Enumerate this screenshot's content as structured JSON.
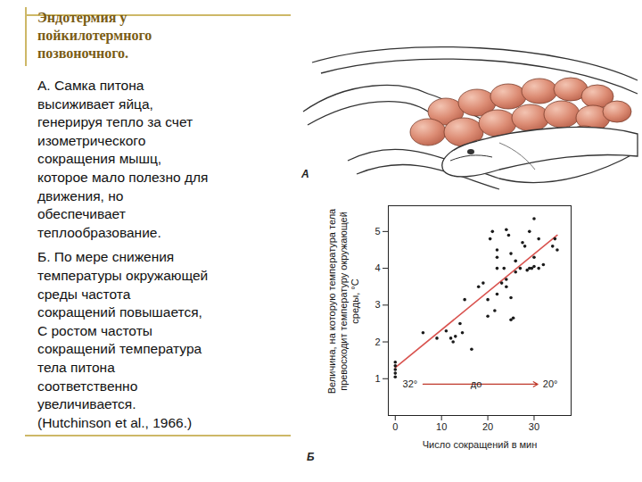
{
  "slide": {
    "title": [
      "Эндотермия у",
      "пойкилотермного",
      "позвоночного."
    ],
    "paragraphs": [
      [
        "А. Самка питона",
        "высиживает яйца,",
        "генерируя тепло за счет",
        "изометрического",
        "сокращения мышц,",
        "которое мало полезно для",
        "движения, но",
        "обеспечивает",
        "теплообразование."
      ],
      [
        "Б. По мере снижения",
        "температуры окружающей",
        "среды частота",
        "сокращений повышается,",
        "С ростом частоты",
        "сокращений температура",
        "тела питона",
        "соответственно",
        "увеличивается.",
        "(Hutchinson et al., 1966.)"
      ]
    ],
    "panel_labels": [
      "А",
      "Б"
    ]
  },
  "chart_data": {
    "type": "scatter",
    "xlabel": "Число сокращений в мин",
    "ylabel": "Величина, на которую температура тела превосходит температуру окружающей среды, °С",
    "xlim": [
      -1.5,
      38
    ],
    "ylim": [
      0,
      5.7
    ],
    "xticks": [
      0,
      10,
      20,
      30
    ],
    "yticks": [
      1,
      2,
      3,
      4,
      5
    ],
    "grid": false,
    "series": [
      {
        "type": "scatter",
        "color": "#1a1a1a",
        "marker": "circle",
        "x": [
          0,
          0,
          0,
          0,
          0,
          6,
          9,
          11,
          12,
          12.5,
          13,
          14,
          14.5,
          15,
          16.5,
          18,
          19,
          20,
          20,
          20.5,
          21,
          21.5,
          22,
          22,
          22,
          22,
          23,
          23.5,
          24,
          24,
          24,
          24.5,
          25,
          25,
          25,
          25.5,
          26,
          26,
          27,
          27.5,
          28,
          28.5,
          29,
          29,
          29.5,
          30,
          30,
          30,
          31,
          31,
          32,
          34,
          34.5,
          35
        ],
        "values": [
          1.45,
          1.35,
          1.25,
          1.15,
          1.05,
          2.25,
          2.1,
          2.3,
          2.1,
          2.0,
          2.15,
          2.5,
          2.25,
          3.15,
          1.8,
          3.5,
          3.6,
          3.15,
          2.7,
          4.8,
          5.0,
          2.85,
          4.3,
          4.5,
          4.0,
          3.3,
          3.6,
          4.0,
          5.05,
          3.5,
          3.7,
          4.9,
          3.2,
          2.6,
          4.4,
          2.65,
          3.9,
          4.2,
          4.0,
          4.7,
          4.6,
          3.95,
          4.0,
          5.0,
          4.0,
          5.35,
          4.3,
          4.05,
          4.8,
          4.0,
          4.1,
          4.6,
          4.8,
          4.5
        ]
      },
      {
        "type": "line",
        "color": "#d9534f",
        "line_style": "solid",
        "x": [
          0,
          35
        ],
        "values": [
          1.3,
          4.9
        ]
      }
    ],
    "annotations": [
      {
        "text": "32°",
        "x": 3.2,
        "y": 0.85
      },
      {
        "text": "до",
        "x": 17.5,
        "y": 0.85
      },
      {
        "text": "20°",
        "x": 33.5,
        "y": 0.85
      }
    ],
    "arrows": [
      {
        "x1": 6,
        "x2": 30.8,
        "y": 0.85,
        "color": "#c0392b"
      }
    ]
  }
}
